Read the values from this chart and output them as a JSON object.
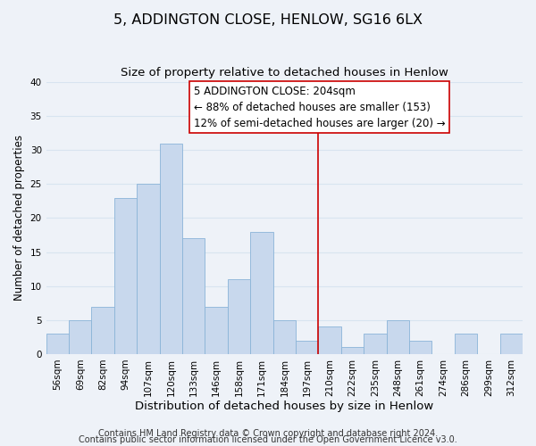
{
  "title": "5, ADDINGTON CLOSE, HENLOW, SG16 6LX",
  "subtitle": "Size of property relative to detached houses in Henlow",
  "xlabel": "Distribution of detached houses by size in Henlow",
  "ylabel": "Number of detached properties",
  "bin_labels": [
    "56sqm",
    "69sqm",
    "82sqm",
    "94sqm",
    "107sqm",
    "120sqm",
    "133sqm",
    "146sqm",
    "158sqm",
    "171sqm",
    "184sqm",
    "197sqm",
    "210sqm",
    "222sqm",
    "235sqm",
    "248sqm",
    "261sqm",
    "274sqm",
    "286sqm",
    "299sqm",
    "312sqm"
  ],
  "bar_heights": [
    3,
    5,
    7,
    23,
    25,
    31,
    17,
    7,
    11,
    18,
    5,
    2,
    4,
    1,
    3,
    5,
    2,
    0,
    3,
    0,
    3
  ],
  "bar_color": "#c8d8ed",
  "bar_edgecolor": "#8ab4d8",
  "vline_color": "#cc0000",
  "annotation_lines": [
    "5 ADDINGTON CLOSE: 204sqm",
    "← 88% of detached houses are smaller (153)",
    "12% of semi-detached houses are larger (20) →"
  ],
  "ylim": [
    0,
    40
  ],
  "footnote1": "Contains HM Land Registry data © Crown copyright and database right 2024.",
  "footnote2": "Contains public sector information licensed under the Open Government Licence v3.0.",
  "background_color": "#eef2f8",
  "grid_color": "#d8e4f0",
  "title_fontsize": 11.5,
  "subtitle_fontsize": 9.5,
  "xlabel_fontsize": 9.5,
  "ylabel_fontsize": 8.5,
  "tick_fontsize": 7.5,
  "annotation_fontsize": 8.5,
  "footnote_fontsize": 7.0
}
